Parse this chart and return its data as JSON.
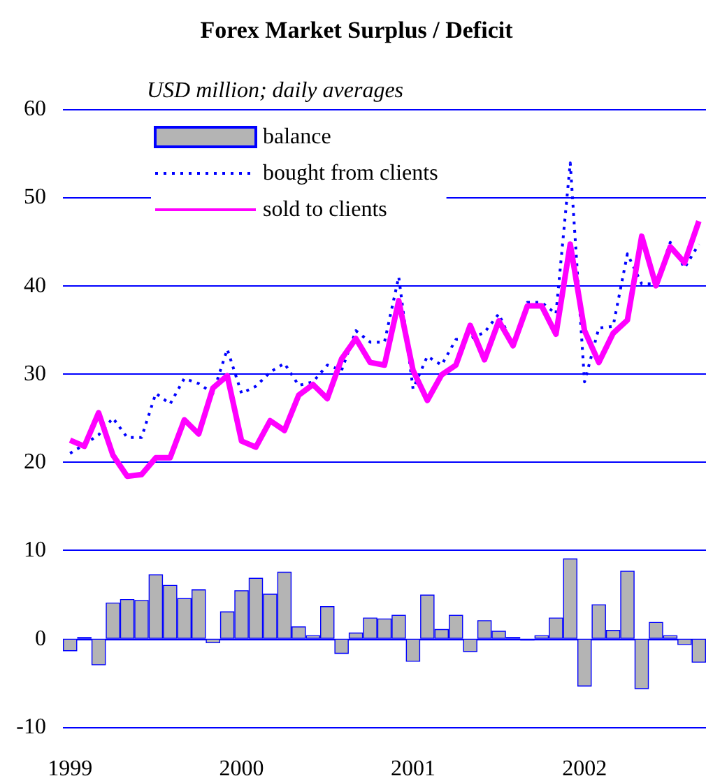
{
  "chart_data": {
    "type": "bar",
    "title": "Forex Market Surplus / Deficit",
    "subtitle": "USD million; daily averages",
    "categories": [
      "1999",
      null,
      null,
      null,
      null,
      null,
      null,
      null,
      null,
      null,
      null,
      null,
      "2000",
      null,
      null,
      null,
      null,
      null,
      null,
      null,
      null,
      null,
      null,
      null,
      "2001",
      null,
      null,
      null,
      null,
      null,
      null,
      null,
      null,
      null,
      null,
      null,
      "2002",
      null,
      null,
      null,
      null,
      null,
      null,
      null,
      null
    ],
    "series": [
      {
        "name": "balance",
        "color": "#b4b4b4",
        "values": [
          -1.4,
          0.2,
          -3.0,
          4.1,
          4.5,
          4.4,
          7.3,
          6.1,
          4.6,
          5.6,
          -0.5,
          3.1,
          5.5,
          6.9,
          5.1,
          7.6,
          1.4,
          0.4,
          3.7,
          -1.7,
          0.7,
          2.4,
          2.3,
          2.7,
          -2.6,
          5.0,
          1.1,
          2.7,
          -1.5,
          2.1,
          0.9,
          0.2,
          -0.2,
          0.4,
          2.4,
          9.1,
          -5.4,
          3.9,
          1.0,
          7.7,
          -5.7,
          1.9,
          0.4,
          -0.7,
          -2.7
        ]
      },
      {
        "name": "bought from clients",
        "type": "line",
        "line_style": "dotted",
        "color": "#0000ff",
        "values": [
          21.0,
          22.0,
          23.1,
          25.0,
          22.8,
          22.8,
          27.8,
          26.6,
          29.5,
          28.9,
          27.8,
          32.8,
          27.8,
          28.6,
          30.2,
          31.2,
          28.7,
          29.1,
          31.0,
          30.4,
          34.9,
          33.6,
          33.6,
          41.0,
          28.3,
          32.0,
          31.0,
          33.9,
          34.0,
          34.7,
          36.8,
          33.2,
          38.1,
          38.1,
          36.8,
          53.9,
          29.1,
          35.2,
          35.4,
          43.6,
          40.2,
          40.2,
          44.9,
          42.0,
          44.7
        ]
      },
      {
        "name": "sold to clients",
        "type": "line",
        "line_style": "solid",
        "color": "#ff00ff",
        "values": [
          22.5,
          21.8,
          25.6,
          20.8,
          18.4,
          18.6,
          20.5,
          20.5,
          24.8,
          23.2,
          28.4,
          29.8,
          22.4,
          21.7,
          24.7,
          23.6,
          27.6,
          28.8,
          27.2,
          31.7,
          34.0,
          31.3,
          31.0,
          38.3,
          30.4,
          27.0,
          29.9,
          31.0,
          35.5,
          31.6,
          36.0,
          33.2,
          37.7,
          37.7,
          34.5,
          44.7,
          34.9,
          31.3,
          34.6,
          36.1,
          45.6,
          40.0,
          44.4,
          42.6,
          47.3
        ]
      }
    ],
    "ylim": [
      -10,
      60
    ],
    "yticks": [
      -10,
      0,
      10,
      20,
      30,
      40,
      50,
      60
    ],
    "grid": "y",
    "legend": "top left",
    "marker": "none"
  }
}
